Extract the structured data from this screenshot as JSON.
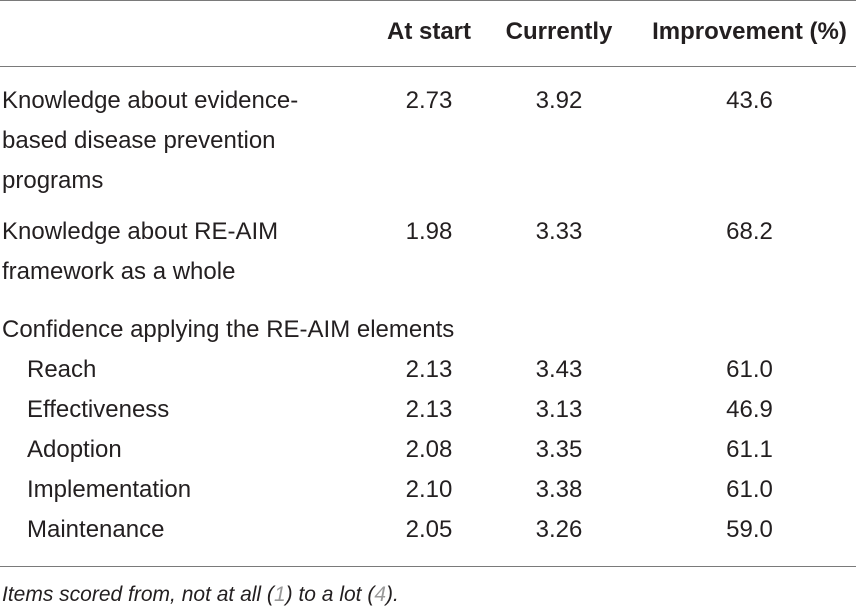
{
  "table": {
    "headers": {
      "col1": "At start",
      "col2": "Currently",
      "col3": "Improvement (%)"
    },
    "rows": [
      {
        "label_lines": [
          "Knowledge about evidence-",
          "based disease prevention",
          "programs"
        ],
        "at_start": "2.73",
        "currently": "3.92",
        "improvement": "43.6"
      },
      {
        "label_lines": [
          "Knowledge about RE-AIM",
          "framework as a whole"
        ],
        "at_start": "1.98",
        "currently": "3.33",
        "improvement": "68.2"
      }
    ],
    "section_label": "Confidence applying the RE-AIM elements",
    "sub_rows": [
      {
        "label": "Reach",
        "at_start": "2.13",
        "currently": "3.43",
        "improvement": "61.0"
      },
      {
        "label": "Effectiveness",
        "at_start": "2.13",
        "currently": "3.13",
        "improvement": "46.9"
      },
      {
        "label": "Adoption",
        "at_start": "2.08",
        "currently": "3.35",
        "improvement": "61.1"
      },
      {
        "label": "Implementation",
        "at_start": "2.10",
        "currently": "3.38",
        "improvement": "61.0"
      },
      {
        "label": "Maintenance",
        "at_start": "2.05",
        "currently": "3.26",
        "improvement": "59.0"
      }
    ]
  },
  "footnote": {
    "prefix": "Items scored from, not at all (",
    "low": "1",
    "middle": ") to a lot (",
    "high": "4",
    "suffix": ")."
  }
}
